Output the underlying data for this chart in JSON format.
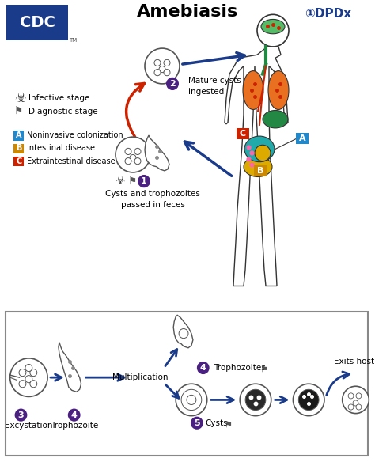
{
  "title": "Amebiasis",
  "bg_color": "#ffffff",
  "title_color": "#000000",
  "title_fontsize": 16,
  "cdc_box_color": "#1a3a8a",
  "cdc_text": "CDC",
  "dpdx_text": "①DPDx",
  "dpdx_color": "#1a3a8a",
  "arrow_blue": "#1a3a8a",
  "arrow_red": "#cc2200",
  "purple_circle": "#4a2080",
  "label_A_color": "#2288cc",
  "label_B_color": "#cc8800",
  "label_C_color": "#cc2200",
  "site_labels": [
    {
      "label": "A",
      "color": "#2288cc",
      "desc": "Noninvasive colonization"
    },
    {
      "label": "B",
      "color": "#cc8800",
      "desc": "Intestinal disease"
    },
    {
      "label": "C",
      "color": "#cc2200",
      "desc": "Extraintestinal disease"
    }
  ],
  "step1_text": "Cysts and trophozoites\npassed in feces",
  "step2_text": "Mature cysts\ningested",
  "bottom_text_mult": "Multiplication",
  "bottom_text_exits": "Exits host",
  "infective_label": "Infective stage",
  "diagnostic_label": "Diagnostic stage"
}
